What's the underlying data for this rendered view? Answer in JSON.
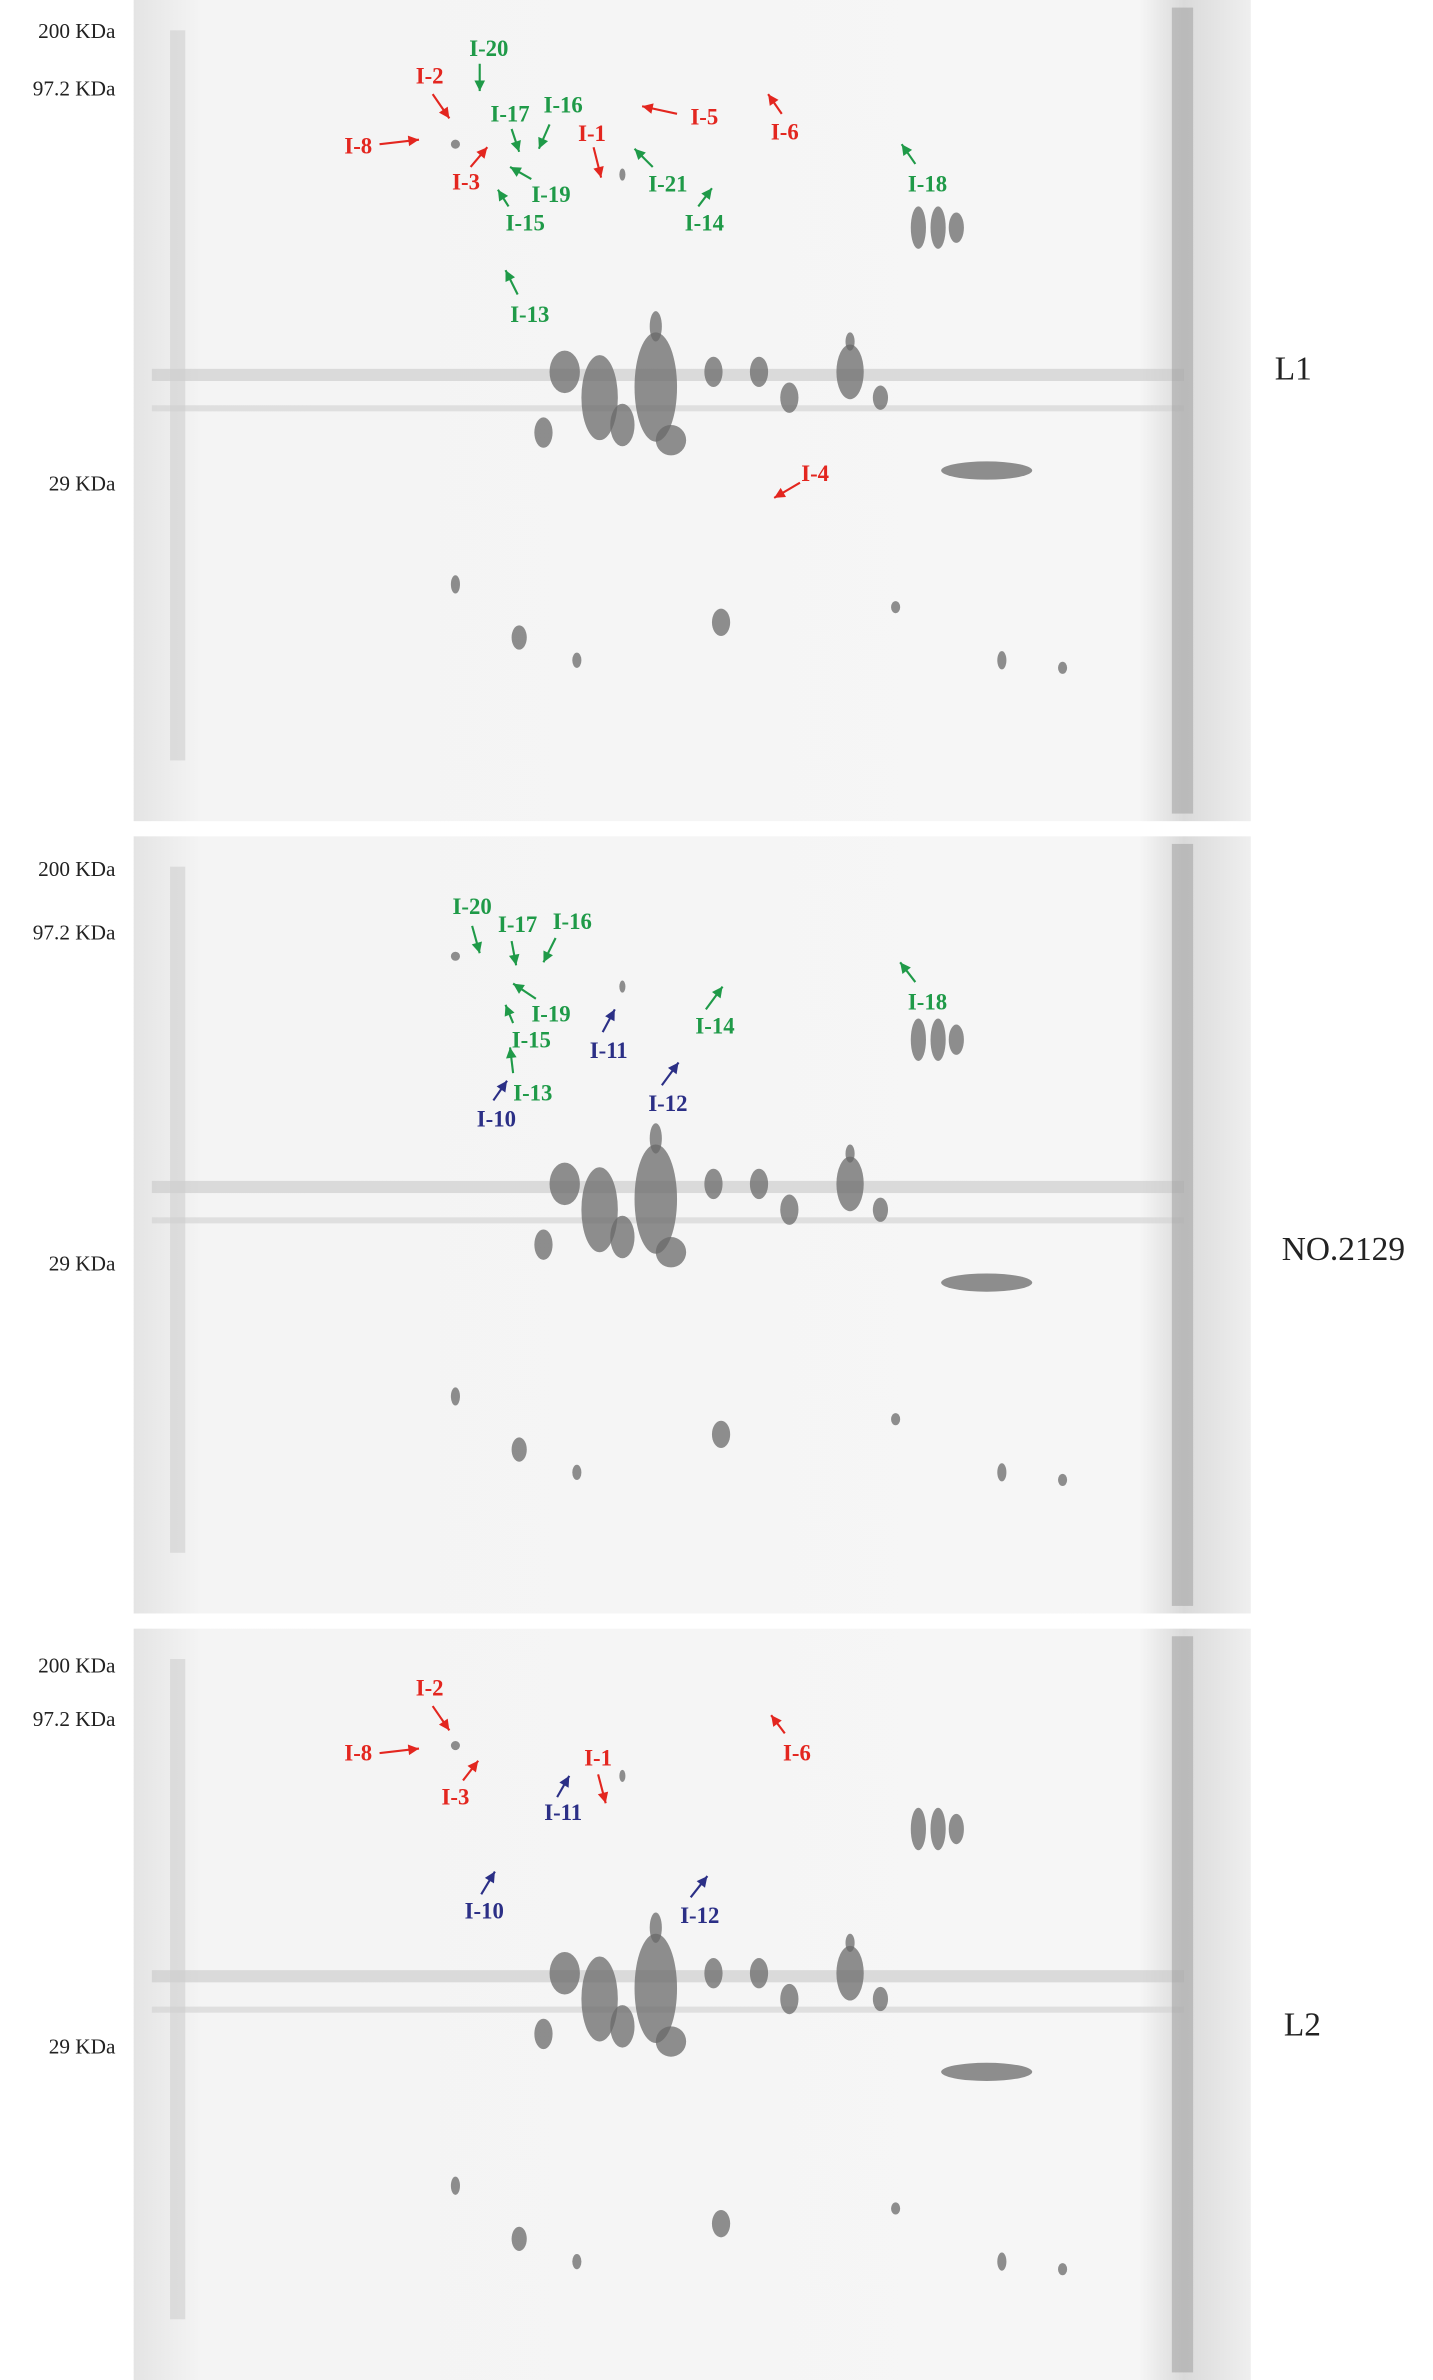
{
  "panels": [
    {
      "name": "L1",
      "mw_labels": [
        "200 KDa",
        "97.2 KDa",
        "29 KDa"
      ],
      "spots": [
        {
          "label": "I-2",
          "color": "#e3261f"
        },
        {
          "label": "I-8",
          "color": "#e3261f"
        },
        {
          "label": "I-20",
          "color": "#1f9a48"
        },
        {
          "label": "I-17",
          "color": "#1f9a48"
        },
        {
          "label": "I-16",
          "color": "#1f9a48"
        },
        {
          "label": "I-1",
          "color": "#e3261f"
        },
        {
          "label": "I-5",
          "color": "#e3261f"
        },
        {
          "label": "I-6",
          "color": "#e3261f"
        },
        {
          "label": "I-3",
          "color": "#e3261f"
        },
        {
          "label": "I-19",
          "color": "#1f9a48"
        },
        {
          "label": "I-21",
          "color": "#1f9a48"
        },
        {
          "label": "I-15",
          "color": "#1f9a48"
        },
        {
          "label": "I-14",
          "color": "#1f9a48"
        },
        {
          "label": "I-18",
          "color": "#1f9a48"
        },
        {
          "label": "I-13",
          "color": "#1f9a48"
        },
        {
          "label": "I-4",
          "color": "#e3261f"
        }
      ]
    },
    {
      "name": "NO.2129",
      "mw_labels": [
        "200 KDa",
        "97.2 KDa",
        "29 KDa"
      ],
      "spots": [
        {
          "label": "I-20",
          "color": "#1f9a48"
        },
        {
          "label": "I-17",
          "color": "#1f9a48"
        },
        {
          "label": "I-16",
          "color": "#1f9a48"
        },
        {
          "label": "I-19",
          "color": "#1f9a48"
        },
        {
          "label": "I-15",
          "color": "#1f9a48"
        },
        {
          "label": "I-13",
          "color": "#1f9a48"
        },
        {
          "label": "I-10",
          "color": "#2b2f86"
        },
        {
          "label": "I-11",
          "color": "#2b2f86"
        },
        {
          "label": "I-12",
          "color": "#2b2f86"
        },
        {
          "label": "I-14",
          "color": "#1f9a48"
        },
        {
          "label": "I-18",
          "color": "#1f9a48"
        }
      ]
    },
    {
      "name": "L2",
      "mw_labels": [
        "200 KDa",
        "97.2 KDa",
        "29 KDa"
      ],
      "spots": [
        {
          "label": "I-2",
          "color": "#e3261f"
        },
        {
          "label": "I-8",
          "color": "#e3261f"
        },
        {
          "label": "I-1",
          "color": "#e3261f"
        },
        {
          "label": "I-6",
          "color": "#e3261f"
        },
        {
          "label": "I-3",
          "color": "#e3261f"
        },
        {
          "label": "I-11",
          "color": "#2b2f86"
        },
        {
          "label": "I-10",
          "color": "#2b2f86"
        },
        {
          "label": "I-12",
          "color": "#2b2f86"
        }
      ]
    }
  ]
}
